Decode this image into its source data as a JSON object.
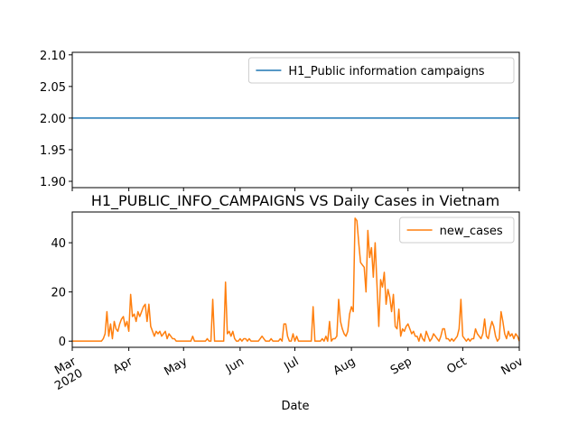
{
  "chart_data": [
    {
      "type": "line",
      "x": [
        "2020-03-01",
        "2020-11-01"
      ],
      "xlim": [
        "2020-03-01",
        "2020-11-01"
      ],
      "series": [
        {
          "name": "H1_Public information campaigns",
          "color": "#1f77b4",
          "values": [
            2,
            2
          ]
        }
      ],
      "ylim": [
        1.89,
        2.104
      ],
      "yticks": [
        {
          "value": 1.9,
          "label": "1.90"
        },
        1.95,
        {
          "value": 2,
          "label": "2.00"
        },
        2.05,
        {
          "value": 2.1,
          "label": "2.10"
        }
      ],
      "legend": "upper right"
    },
    {
      "type": "line",
      "title": "H1_PUBLIC_INFO_CAMPAIGNS VS Daily Cases in Vietnam",
      "xlabel": "Date",
      "x": [
        "2020-03-01",
        "2020-03-02",
        "2020-03-03",
        "2020-03-04",
        "2020-03-05",
        "2020-03-06",
        "2020-03-07",
        "2020-03-08",
        "2020-03-09",
        "2020-03-10",
        "2020-03-11",
        "2020-03-12",
        "2020-03-13",
        "2020-03-14",
        "2020-03-15",
        "2020-03-16",
        "2020-03-17",
        "2020-03-18",
        "2020-03-19",
        "2020-03-20",
        "2020-03-21",
        "2020-03-22",
        "2020-03-23",
        "2020-03-24",
        "2020-03-25",
        "2020-03-26",
        "2020-03-27",
        "2020-03-28",
        "2020-03-29",
        "2020-03-30",
        "2020-03-31",
        "2020-04-01",
        "2020-04-02",
        "2020-04-03",
        "2020-04-04",
        "2020-04-05",
        "2020-04-06",
        "2020-04-07",
        "2020-04-08",
        "2020-04-09",
        "2020-04-10",
        "2020-04-11",
        "2020-04-12",
        "2020-04-13",
        "2020-04-14",
        "2020-04-15",
        "2020-04-16",
        "2020-04-17",
        "2020-04-18",
        "2020-04-19",
        "2020-04-20",
        "2020-04-21",
        "2020-04-22",
        "2020-04-23",
        "2020-04-24",
        "2020-04-25",
        "2020-04-26",
        "2020-04-27",
        "2020-04-28",
        "2020-04-29",
        "2020-04-30",
        "2020-05-01",
        "2020-05-02",
        "2020-05-03",
        "2020-05-04",
        "2020-05-05",
        "2020-05-06",
        "2020-05-07",
        "2020-05-08",
        "2020-05-09",
        "2020-05-10",
        "2020-05-11",
        "2020-05-12",
        "2020-05-13",
        "2020-05-14",
        "2020-05-15",
        "2020-05-16",
        "2020-05-17",
        "2020-05-18",
        "2020-05-19",
        "2020-05-20",
        "2020-05-21",
        "2020-05-22",
        "2020-05-23",
        "2020-05-24",
        "2020-05-25",
        "2020-05-26",
        "2020-05-27",
        "2020-05-28",
        "2020-05-29",
        "2020-05-30",
        "2020-05-31",
        "2020-06-01",
        "2020-06-02",
        "2020-06-03",
        "2020-06-04",
        "2020-06-05",
        "2020-06-06",
        "2020-06-07",
        "2020-06-08",
        "2020-06-09",
        "2020-06-10",
        "2020-06-11",
        "2020-06-12",
        "2020-06-13",
        "2020-06-14",
        "2020-06-15",
        "2020-06-16",
        "2020-06-17",
        "2020-06-18",
        "2020-06-19",
        "2020-06-20",
        "2020-06-21",
        "2020-06-22",
        "2020-06-23",
        "2020-06-24",
        "2020-06-25",
        "2020-06-26",
        "2020-06-27",
        "2020-06-28",
        "2020-06-29",
        "2020-06-30",
        "2020-07-01",
        "2020-07-02",
        "2020-07-03",
        "2020-07-04",
        "2020-07-05",
        "2020-07-06",
        "2020-07-07",
        "2020-07-08",
        "2020-07-09",
        "2020-07-10",
        "2020-07-11",
        "2020-07-12",
        "2020-07-13",
        "2020-07-14",
        "2020-07-15",
        "2020-07-16",
        "2020-07-17",
        "2020-07-18",
        "2020-07-19",
        "2020-07-20",
        "2020-07-21",
        "2020-07-22",
        "2020-07-23",
        "2020-07-24",
        "2020-07-25",
        "2020-07-26",
        "2020-07-27",
        "2020-07-28",
        "2020-07-29",
        "2020-07-30",
        "2020-07-31",
        "2020-08-01",
        "2020-08-02",
        "2020-08-03",
        "2020-08-04",
        "2020-08-05",
        "2020-08-06",
        "2020-08-07",
        "2020-08-08",
        "2020-08-09",
        "2020-08-10",
        "2020-08-11",
        "2020-08-12",
        "2020-08-13",
        "2020-08-14",
        "2020-08-15",
        "2020-08-16",
        "2020-08-17",
        "2020-08-18",
        "2020-08-19",
        "2020-08-20",
        "2020-08-21",
        "2020-08-22",
        "2020-08-23",
        "2020-08-24",
        "2020-08-25",
        "2020-08-26",
        "2020-08-27",
        "2020-08-28",
        "2020-08-29",
        "2020-08-30",
        "2020-08-31",
        "2020-09-01",
        "2020-09-02",
        "2020-09-03",
        "2020-09-04",
        "2020-09-05",
        "2020-09-06",
        "2020-09-07",
        "2020-09-08",
        "2020-09-09",
        "2020-09-10",
        "2020-09-11",
        "2020-09-12",
        "2020-09-13",
        "2020-09-14",
        "2020-09-15",
        "2020-09-16",
        "2020-09-17",
        "2020-09-18",
        "2020-09-19",
        "2020-09-20",
        "2020-09-21",
        "2020-09-22",
        "2020-09-23",
        "2020-09-24",
        "2020-09-25",
        "2020-09-26",
        "2020-09-27",
        "2020-09-28",
        "2020-09-29",
        "2020-09-30",
        "2020-10-01",
        "2020-10-02",
        "2020-10-03",
        "2020-10-04",
        "2020-10-05",
        "2020-10-06",
        "2020-10-07",
        "2020-10-08",
        "2020-10-09",
        "2020-10-10",
        "2020-10-11",
        "2020-10-12",
        "2020-10-13",
        "2020-10-14",
        "2020-10-15",
        "2020-10-16",
        "2020-10-17",
        "2020-10-18",
        "2020-10-19",
        "2020-10-20",
        "2020-10-21",
        "2020-10-22",
        "2020-10-23",
        "2020-10-24",
        "2020-10-25",
        "2020-10-26",
        "2020-10-27",
        "2020-10-28",
        "2020-10-29",
        "2020-10-30",
        "2020-10-31",
        "2020-11-01"
      ],
      "series": [
        {
          "name": "new_cases",
          "color": "#ff7f0e",
          "values": [
            0,
            0,
            0,
            0,
            0,
            0,
            0,
            0,
            0,
            0,
            0,
            0,
            0,
            0,
            0,
            0,
            0,
            1,
            3,
            12,
            2,
            7,
            1,
            8,
            5,
            4,
            7,
            9,
            10,
            6,
            8,
            4,
            19,
            10,
            11,
            8,
            12,
            10,
            12,
            14,
            15,
            8,
            15,
            6,
            4,
            2,
            4,
            3,
            4,
            2,
            3,
            4,
            1,
            3,
            2,
            1,
            1,
            0,
            0,
            0,
            0,
            0,
            0,
            0,
            0,
            0,
            2,
            0,
            0,
            0,
            0,
            0,
            0,
            0,
            1,
            0,
            0,
            17,
            0,
            0,
            0,
            0,
            0,
            0,
            24,
            3,
            4,
            2,
            4,
            1,
            0,
            0,
            1,
            0,
            1,
            1,
            0,
            1,
            0,
            0,
            0,
            0,
            0,
            1,
            2,
            1,
            0,
            0,
            0,
            1,
            0,
            0,
            0,
            0,
            1,
            0,
            7,
            7,
            2,
            0,
            0,
            3,
            0,
            2,
            0,
            0,
            0,
            0,
            0,
            0,
            0,
            0,
            14,
            0,
            0,
            0,
            0,
            1,
            0,
            2,
            0,
            8,
            0,
            1,
            1,
            2,
            17,
            8,
            5,
            3,
            2,
            4,
            11,
            14,
            12,
            50,
            49,
            40,
            32,
            31,
            30,
            20,
            45,
            34,
            38,
            26,
            40,
            23,
            6,
            25,
            22,
            28,
            15,
            21,
            18,
            12,
            19,
            6,
            5,
            13,
            2,
            5,
            4,
            6,
            7,
            5,
            3,
            4,
            2,
            2,
            0,
            3,
            1,
            0,
            4,
            2,
            0,
            1,
            3,
            2,
            1,
            0,
            2,
            5,
            5,
            1,
            1,
            0,
            1,
            0,
            1,
            2,
            5,
            17,
            2,
            1,
            0,
            1,
            0,
            1,
            1,
            5,
            3,
            2,
            1,
            3,
            9,
            2,
            1,
            5,
            8,
            6,
            2,
            0,
            1,
            12,
            8,
            3,
            1,
            4,
            2,
            3,
            1,
            3,
            2,
            0
          ]
        }
      ],
      "xlim": [
        "2020-03-01",
        "2020-11-01"
      ],
      "xticks": [
        {
          "value": "2020-03-01",
          "label": "Mar\n2020"
        },
        {
          "value": "2020-04-01",
          "label": "Apr"
        },
        {
          "value": "2020-05-01",
          "label": "May"
        },
        {
          "value": "2020-06-01",
          "label": "Jun"
        },
        {
          "value": "2020-07-01",
          "label": "Jul"
        },
        {
          "value": "2020-08-01",
          "label": "Aug"
        },
        {
          "value": "2020-09-01",
          "label": "Sep"
        },
        {
          "value": "2020-10-01",
          "label": "Oct"
        },
        {
          "value": "2020-11-01",
          "label": "Nov"
        }
      ],
      "ylim": [
        -2.5,
        52.5
      ],
      "yticks": [
        0,
        20,
        40
      ],
      "legend": "upper right"
    }
  ]
}
